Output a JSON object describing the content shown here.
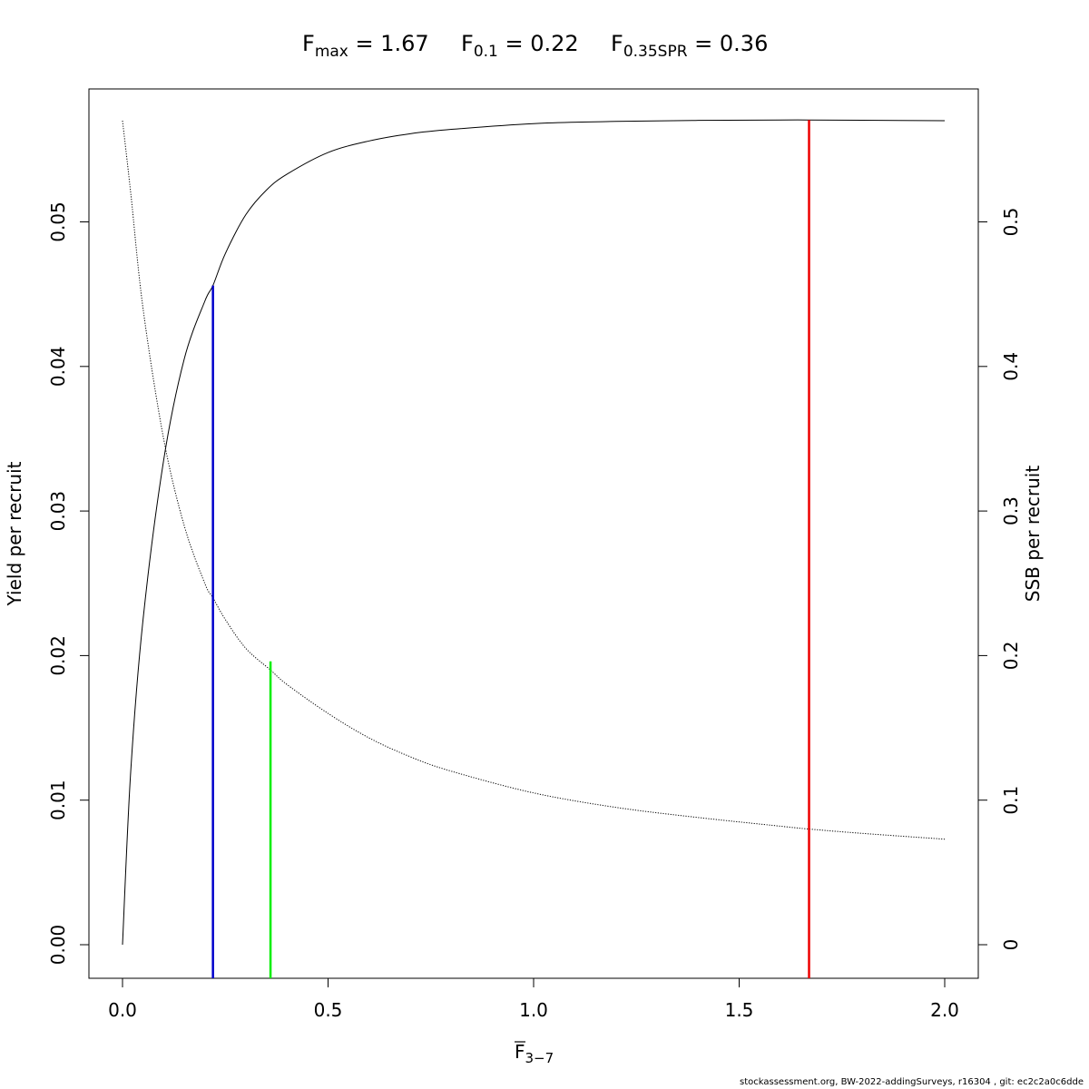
{
  "chart_data": {
    "type": "line",
    "title_parts": [
      {
        "base": "F",
        "sub": "max",
        "rest": " = 1.67"
      },
      {
        "base": "F",
        "sub": "0.1",
        "rest": " = 0.22"
      },
      {
        "base": "F",
        "sub": "0.35SPR",
        "rest": " = 0.36"
      }
    ],
    "xlabel": {
      "base": "F",
      "sub": "3−7"
    },
    "ylabel_left": "Yield per recruit",
    "ylabel_right": "SSB per recruit",
    "xlim": [
      0,
      2.0
    ],
    "ylim_left": [
      0,
      0.057
    ],
    "ylim_right": [
      0,
      0.57
    ],
    "x_ticks": [
      "0.0",
      "0.5",
      "1.0",
      "1.5",
      "2.0"
    ],
    "y_left_ticks": [
      "0.00",
      "0.01",
      "0.02",
      "0.03",
      "0.04",
      "0.05"
    ],
    "y_right_ticks": [
      "0",
      "0.1",
      "0.2",
      "0.3",
      "0.4",
      "0.5"
    ],
    "grid": false,
    "series": [
      {
        "name": "Yield per recruit",
        "axis": "left",
        "style": "solid",
        "color": "#000000",
        "x": [
          0.0,
          0.02,
          0.05,
          0.1,
          0.15,
          0.2,
          0.22,
          0.25,
          0.3,
          0.35,
          0.4,
          0.5,
          0.6,
          0.7,
          0.8,
          1.0,
          1.2,
          1.4,
          1.6,
          1.67,
          1.8,
          2.0
        ],
        "y": [
          0.0,
          0.012,
          0.0225,
          0.0335,
          0.0405,
          0.0445,
          0.0456,
          0.0478,
          0.0505,
          0.0522,
          0.0533,
          0.0548,
          0.0556,
          0.0561,
          0.0564,
          0.0568,
          0.05695,
          0.05702,
          0.05705,
          0.05705,
          0.05703,
          0.057
        ]
      },
      {
        "name": "SSB per recruit",
        "axis": "right",
        "style": "dotted",
        "color": "#000000",
        "x": [
          0.0,
          0.02,
          0.05,
          0.1,
          0.15,
          0.2,
          0.22,
          0.25,
          0.3,
          0.36,
          0.4,
          0.5,
          0.6,
          0.7,
          0.8,
          1.0,
          1.2,
          1.4,
          1.6,
          1.67,
          1.8,
          2.0
        ],
        "y": [
          0.57,
          0.52,
          0.44,
          0.35,
          0.29,
          0.25,
          0.24,
          0.225,
          0.205,
          0.19,
          0.18,
          0.16,
          0.143,
          0.13,
          0.12,
          0.105,
          0.095,
          0.088,
          0.082,
          0.08,
          0.077,
          0.073
        ]
      }
    ],
    "reference_lines": [
      {
        "name": "F0.1",
        "x": 0.22,
        "y_top_left": 0.0456,
        "color": "#0000CC"
      },
      {
        "name": "F0.35SPR",
        "x": 0.36,
        "y_top_left": 0.0196,
        "color": "#00EE00"
      },
      {
        "name": "Fmax",
        "x": 1.67,
        "y_top_left": 0.05705,
        "color": "#EE0000"
      }
    ]
  },
  "footer": "stockassessment.org, BW-2022-addingSurveys, r16304 , git: ec2c2a0c6dde"
}
